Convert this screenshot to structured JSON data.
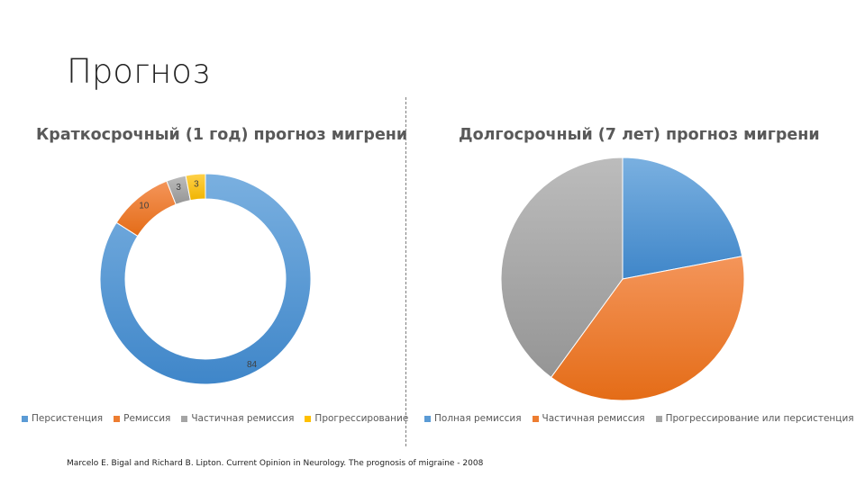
{
  "slide": {
    "title": "Прогноз",
    "source": "Marcelo E. Bigal and Richard B. Lipton. Current Opinion in Neurology. The prognosis of migraine - 2008"
  },
  "chart_data": [
    {
      "type": "pie",
      "variant": "doughnut",
      "title": "Краткосрочный (1 год) прогноз мигрени",
      "categories": [
        "Персистенция",
        "Ремиссия",
        "Частичная ремиссия",
        "Прогрессирование"
      ],
      "values": [
        84,
        10,
        3,
        3
      ],
      "value_labels": [
        "84",
        "10",
        "3",
        "3"
      ],
      "colors": [
        "#5b9bd5",
        "#ed7d31",
        "#a5a5a5",
        "#ffc000"
      ],
      "legend": "bottom"
    },
    {
      "type": "pie",
      "title": "Долгосрочный (7 лет) прогноз мигрени",
      "categories": [
        "Полная ремиссия",
        "Частичная ремиссия",
        "Прогрессирование или персистенция"
      ],
      "values": [
        22,
        38,
        40
      ],
      "colors": [
        "#5b9bd5",
        "#ed7d31",
        "#a5a5a5"
      ],
      "legend": "bottom"
    }
  ]
}
